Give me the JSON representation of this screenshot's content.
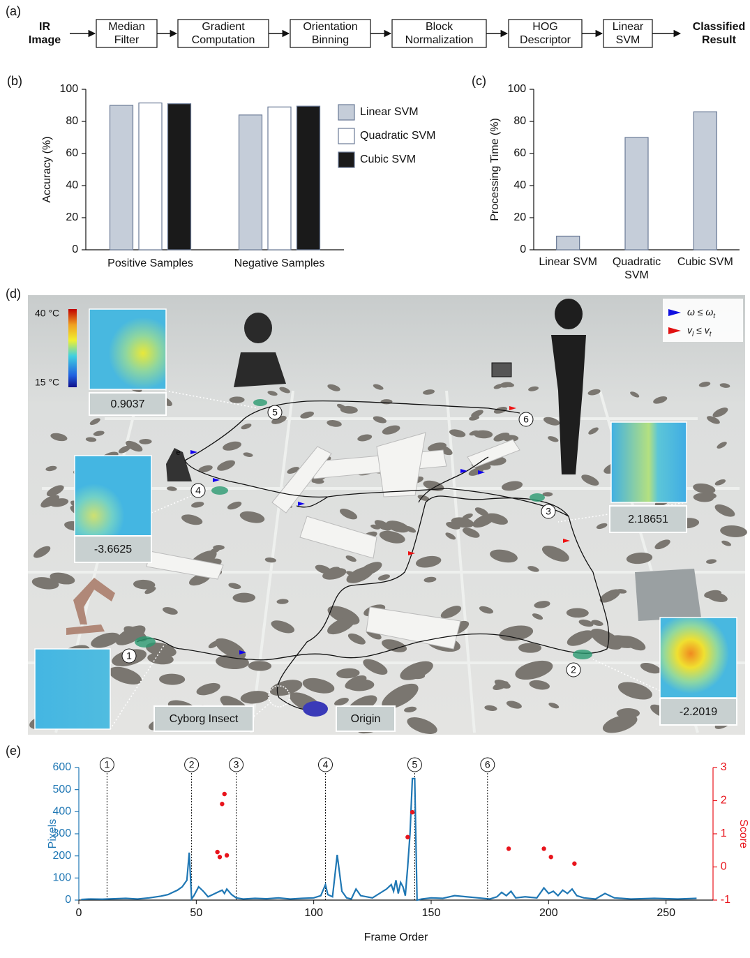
{
  "panel_a": {
    "panel_label": "(a)",
    "input": "IR Image",
    "steps": [
      "Median Filter",
      "Gradient Computation",
      "Orientation Binning",
      "Block Normalization",
      "HOG Descriptor",
      "Linear SVM"
    ],
    "output": "Classified Result"
  },
  "panel_d": {
    "panel_label": "(d)",
    "colorbar": {
      "max_label": "40 °C",
      "min_label": "15 °C"
    },
    "scores": [
      "0.9037",
      "-3.6625",
      "2.18651",
      "-2.2019"
    ],
    "waypoints": [
      "1",
      "2",
      "3",
      "4",
      "5",
      "6"
    ],
    "insect_label": "Cyborg Insect",
    "origin_label": "Origin",
    "device_label": "e",
    "legend": [
      {
        "parts": [
          "ω ≤ ω",
          "t"
        ],
        "color": "#1010e0"
      },
      {
        "parts": [
          "v",
          "l",
          " ≤ v",
          "t"
        ],
        "color": "#e01010"
      }
    ]
  },
  "chart_data": [
    {
      "type": "bar",
      "panel_label": "(b)",
      "ylabel": "Accuracy (%)",
      "categories": [
        "Positive Samples",
        "Negative Samples"
      ],
      "series": [
        {
          "name": "Linear SVM",
          "color": "#c5cdd9",
          "values": [
            90,
            84
          ]
        },
        {
          "name": "Quadratic SVM",
          "color": "#ffffff",
          "values": [
            91.5,
            89
          ]
        },
        {
          "name": "Cubic SVM",
          "color": "#1a1a1a",
          "values": [
            91,
            89.5
          ]
        }
      ],
      "ylim": [
        0,
        100
      ],
      "yticks": [
        0,
        20,
        40,
        60,
        80,
        100
      ]
    },
    {
      "type": "bar",
      "panel_label": "(c)",
      "ylabel": "Processing Time (%)",
      "categories": [
        "Linear SVM",
        "Quadratic SVM",
        "Cubic SVM"
      ],
      "values": [
        8.5,
        70,
        86
      ],
      "color": "#c5cdd9",
      "ylim": [
        0,
        100
      ],
      "yticks": [
        0,
        20,
        40,
        60,
        80,
        100
      ]
    },
    {
      "type": "line",
      "panel_label": "(e)",
      "xlabel": "Frame Order",
      "xlim": [
        0,
        270
      ],
      "xticks": [
        0,
        50,
        100,
        150,
        200,
        250
      ],
      "ylim": [
        0,
        600
      ],
      "yticks": [
        0,
        100,
        200,
        300,
        400,
        500,
        600
      ],
      "y2lim": [
        -1,
        3
      ],
      "y2ticks": [
        -1,
        0,
        1,
        2,
        3
      ],
      "series": [
        {
          "name": "Pixels",
          "color": "#1f77b4",
          "x": [
            1,
            5,
            10,
            15,
            20,
            25,
            30,
            35,
            38,
            40,
            42,
            44,
            46,
            47,
            48,
            49,
            51,
            53,
            55,
            57,
            59,
            61,
            62,
            63,
            65,
            67,
            70,
            75,
            80,
            85,
            90,
            95,
            100,
            103,
            105,
            106,
            108,
            110,
            112,
            114,
            116,
            118,
            120,
            125,
            128,
            131,
            133,
            134,
            135,
            136,
            137,
            138,
            139,
            140,
            141,
            142,
            143,
            144,
            146,
            150,
            155,
            160,
            165,
            170,
            175,
            178,
            180,
            182,
            184,
            186,
            190,
            195,
            198,
            200,
            202,
            204,
            206,
            208,
            210,
            212,
            215,
            220,
            224,
            228,
            235,
            245,
            255,
            263
          ],
          "values": [
            3,
            5,
            4,
            6,
            8,
            5,
            10,
            18,
            25,
            35,
            45,
            60,
            90,
            215,
            5,
            20,
            60,
            40,
            15,
            25,
            35,
            45,
            30,
            50,
            25,
            10,
            5,
            8,
            6,
            10,
            5,
            8,
            10,
            20,
            70,
            25,
            15,
            205,
            40,
            10,
            5,
            50,
            20,
            10,
            30,
            50,
            70,
            40,
            90,
            30,
            80,
            60,
            20,
            150,
            300,
            550,
            550,
            0,
            5,
            10,
            8,
            20,
            15,
            10,
            5,
            15,
            35,
            20,
            40,
            10,
            15,
            10,
            55,
            30,
            40,
            20,
            45,
            30,
            50,
            20,
            10,
            5,
            30,
            10,
            5,
            8,
            5,
            8
          ]
        },
        {
          "name": "Score",
          "type": "scatter",
          "axis": "y2",
          "color": "#e8141c",
          "x": [
            59,
            60,
            61,
            62,
            63,
            140,
            142,
            183,
            198,
            201,
            211
          ],
          "values": [
            0.45,
            0.3,
            1.9,
            2.2,
            0.35,
            0.9,
            1.65,
            0.55,
            0.55,
            0.3,
            0.1
          ]
        }
      ],
      "markers": [
        {
          "x": 12,
          "label": "1"
        },
        {
          "x": 48,
          "label": "2"
        },
        {
          "x": 67,
          "label": "3"
        },
        {
          "x": 105,
          "label": "4"
        },
        {
          "x": 143,
          "label": "5"
        },
        {
          "x": 174,
          "label": "6"
        }
      ]
    }
  ]
}
